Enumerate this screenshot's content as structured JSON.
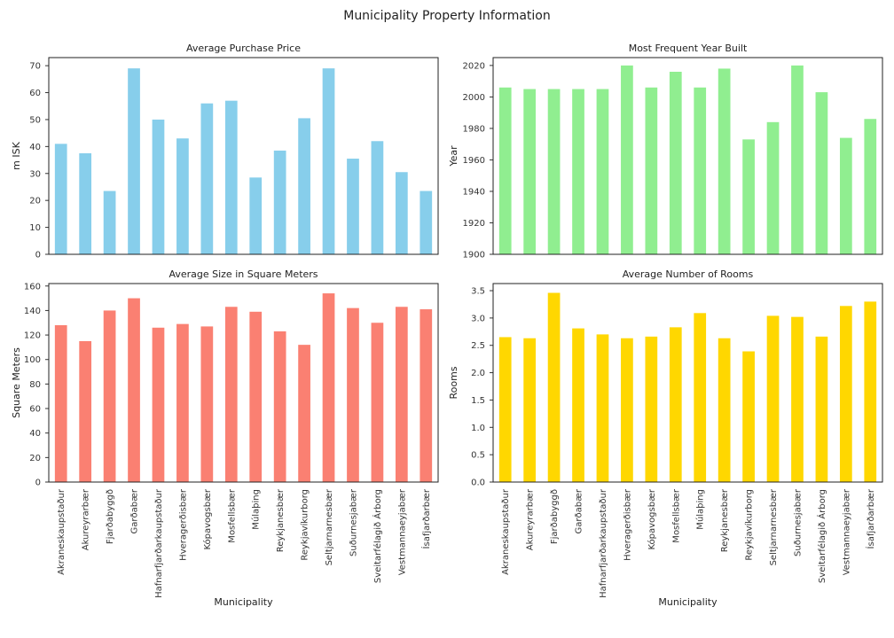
{
  "figure": {
    "title": "Municipality Property Information"
  },
  "chart_data": [
    {
      "type": "bar",
      "title": "Average Purchase Price",
      "xlabel": "",
      "ylabel": "m ISK",
      "ylim": [
        0,
        73
      ],
      "yticks": [
        0,
        10,
        20,
        30,
        40,
        50,
        60,
        70
      ],
      "color": "#87ceeb",
      "categories": [
        "Akraneskaupstaður",
        "Akureyrarbær",
        "Fjarðabyggð",
        "Garðabær",
        "Hafnarfjarðarkaupstaður",
        "Hveragerðisbær",
        "Kópavogsbær",
        "Mosfellsbær",
        "Múlaþing",
        "Reykjanesbær",
        "Reykjavíkurborg",
        "Seltjarnarnesbær",
        "Suðurnesjabær",
        "Sveitarfélagið Árborg",
        "Vestmannaeyjabær",
        "Ísafjarðarbær"
      ],
      "values": [
        41,
        37.5,
        23.5,
        69,
        50,
        43,
        56,
        57,
        28.5,
        38.5,
        50.5,
        69,
        35.5,
        42,
        30.5,
        23.5
      ]
    },
    {
      "type": "bar",
      "title": "Most Frequent Year Built",
      "xlabel": "",
      "ylabel": "Year",
      "ylim": [
        1900,
        2025
      ],
      "yticks": [
        1900,
        1920,
        1940,
        1960,
        1980,
        2000,
        2020
      ],
      "color": "#90ee90",
      "categories": [
        "Akraneskaupstaður",
        "Akureyrarbær",
        "Fjarðabyggð",
        "Garðabær",
        "Hafnarfjarðarkaupstaður",
        "Hveragerðisbær",
        "Kópavogsbær",
        "Mosfellsbær",
        "Múlaþing",
        "Reykjanesbær",
        "Reykjavíkurborg",
        "Seltjarnarnesbær",
        "Suðurnesjabær",
        "Sveitarfélagið Árborg",
        "Vestmannaeyjabær",
        "Ísafjarðarbær"
      ],
      "values": [
        2006,
        2005,
        2005,
        2005,
        2005,
        2020,
        2006,
        2016,
        2006,
        2018,
        1973,
        1984,
        2020,
        2003,
        1974,
        1986
      ]
    },
    {
      "type": "bar",
      "title": "Average Size in Square Meters",
      "xlabel": "Municipality",
      "ylabel": "Square Meters",
      "ylim": [
        0,
        162
      ],
      "yticks": [
        0,
        20,
        40,
        60,
        80,
        100,
        120,
        140,
        160
      ],
      "color": "#fa8072",
      "categories": [
        "Akraneskaupstaður",
        "Akureyrarbær",
        "Fjarðabyggð",
        "Garðabær",
        "Hafnarfjarðarkaupstaður",
        "Hveragerðisbær",
        "Kópavogsbær",
        "Mosfellsbær",
        "Múlaþing",
        "Reykjanesbær",
        "Reykjavíkurborg",
        "Seltjarnarnesbær",
        "Suðurnesjabær",
        "Sveitarfélagið Árborg",
        "Vestmannaeyjabær",
        "Ísafjarðarbær"
      ],
      "values": [
        128,
        115,
        140,
        150,
        126,
        129,
        127,
        143,
        139,
        123,
        112,
        154,
        142,
        130,
        143,
        141
      ]
    },
    {
      "type": "bar",
      "title": "Average Number of Rooms",
      "xlabel": "Municipality",
      "ylabel": "Rooms",
      "ylim": [
        0,
        3.63
      ],
      "yticks": [
        0.0,
        0.5,
        1.0,
        1.5,
        2.0,
        2.5,
        3.0,
        3.5
      ],
      "ytick_labels": [
        "0.0",
        "0.5",
        "1.0",
        "1.5",
        "2.0",
        "2.5",
        "3.0",
        "3.5"
      ],
      "color": "#ffd700",
      "categories": [
        "Akraneskaupstaður",
        "Akureyrarbær",
        "Fjarðabyggð",
        "Garðabær",
        "Hafnarfjarðarkaupstaður",
        "Hveragerðisbær",
        "Kópavogsbær",
        "Mosfellsbær",
        "Múlaþing",
        "Reykjanesbær",
        "Reykjavíkurborg",
        "Seltjarnarnesbær",
        "Suðurnesjabær",
        "Sveitarfélagið Árborg",
        "Vestmannaeyjabær",
        "Ísafjarðarbær"
      ],
      "values": [
        2.65,
        2.63,
        3.46,
        2.81,
        2.7,
        2.63,
        2.66,
        2.83,
        3.09,
        2.63,
        2.39,
        3.04,
        3.02,
        2.66,
        3.22,
        3.3
      ]
    }
  ]
}
